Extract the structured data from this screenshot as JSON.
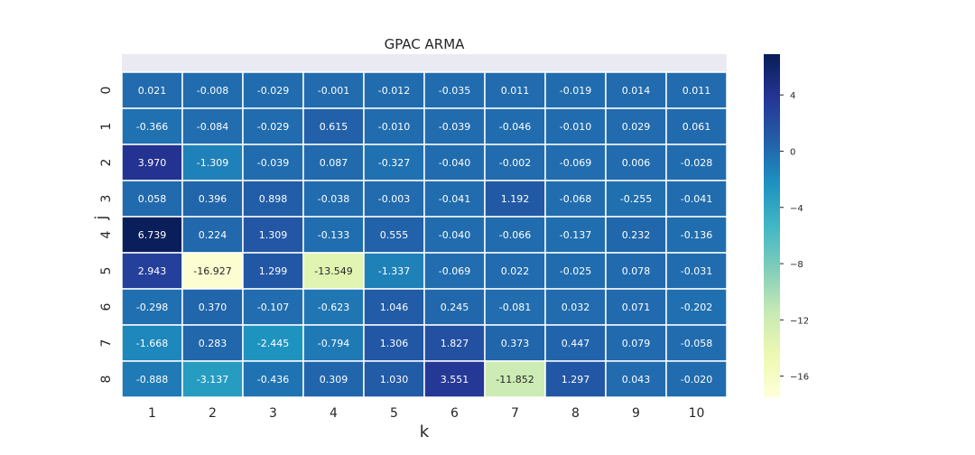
{
  "chart_data": {
    "type": "heatmap",
    "title": "GPAC ARMA",
    "xlabel": "k",
    "ylabel": "j",
    "x_ticks": [
      "1",
      "2",
      "3",
      "4",
      "5",
      "6",
      "7",
      "8",
      "9",
      "10"
    ],
    "y_ticks": [
      "0",
      "1",
      "2",
      "3",
      "4",
      "5",
      "6",
      "7",
      "8"
    ],
    "values": [
      [
        "0.021",
        "-0.008",
        "-0.029",
        "-0.001",
        "-0.012",
        "-0.035",
        "0.011",
        "-0.019",
        "0.014",
        "0.011"
      ],
      [
        "-0.366",
        "-0.084",
        "-0.029",
        "0.615",
        "-0.010",
        "-0.039",
        "-0.046",
        "-0.010",
        "0.029",
        "0.061"
      ],
      [
        "3.970",
        "-1.309",
        "-0.039",
        "0.087",
        "-0.327",
        "-0.040",
        "-0.002",
        "-0.069",
        "0.006",
        "-0.028"
      ],
      [
        "0.058",
        "0.396",
        "0.898",
        "-0.038",
        "-0.003",
        "-0.041",
        "1.192",
        "-0.068",
        "-0.255",
        "-0.041"
      ],
      [
        "6.739",
        "0.224",
        "1.309",
        "-0.133",
        "0.555",
        "-0.040",
        "-0.066",
        "-0.137",
        "0.232",
        "-0.136"
      ],
      [
        "2.943",
        "-16.927",
        "1.299",
        "-13.549",
        "-1.337",
        "-0.069",
        "0.022",
        "-0.025",
        "0.078",
        "-0.031"
      ],
      [
        "-0.298",
        "0.370",
        "-0.107",
        "-0.623",
        "1.046",
        "0.245",
        "-0.081",
        "0.032",
        "0.071",
        "-0.202"
      ],
      [
        "-1.668",
        "0.283",
        "-2.445",
        "-0.794",
        "1.306",
        "1.827",
        "0.373",
        "0.447",
        "0.079",
        "-0.058"
      ],
      [
        "-0.888",
        "-3.137",
        "-0.436",
        "0.309",
        "1.030",
        "3.551",
        "-11.852",
        "1.297",
        "0.043",
        "-0.020"
      ]
    ],
    "colorbar": {
      "colormap": "YlGnBu",
      "vmin": -17.5,
      "vmax": 6.9,
      "ticks": [
        4,
        0,
        -4,
        -8,
        -12,
        -16
      ],
      "tick_labels": [
        "4",
        "0",
        "−4",
        "−8",
        "−12",
        "−16"
      ]
    }
  }
}
